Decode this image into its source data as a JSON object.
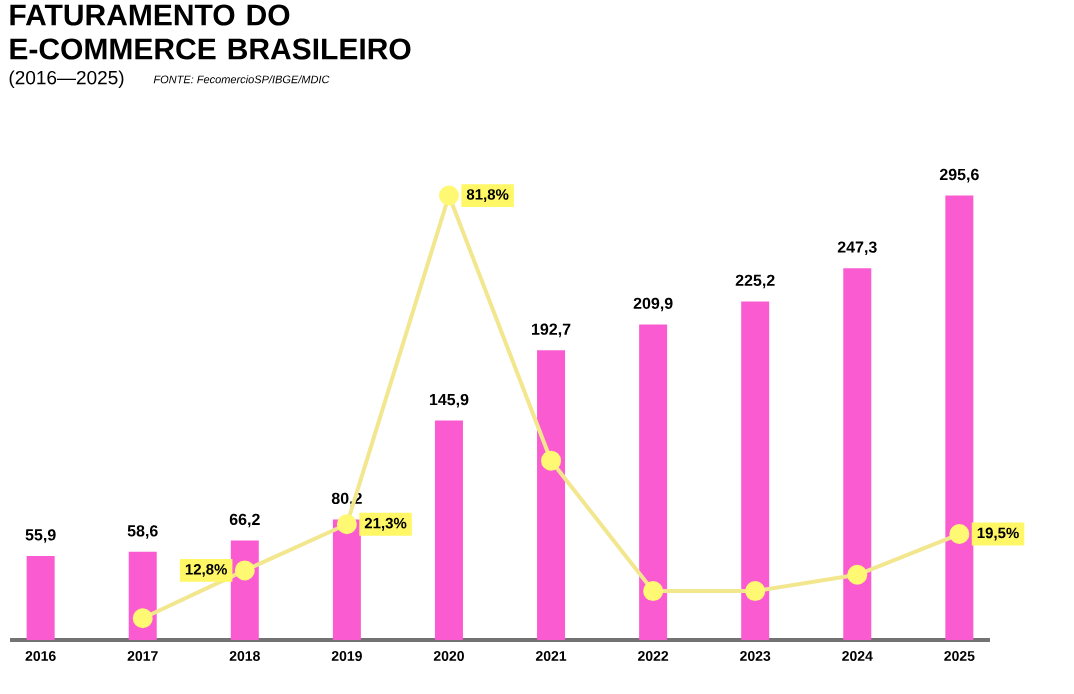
{
  "chart_data": {
    "type": "bar",
    "title": "FATURAMENTO DO E-COMMERCE BRASILEIRO",
    "subtitle": "(2016—2025)",
    "annotations": [
      "FONTE: FecomercioSP/IBGE/MDIC"
    ],
    "categories": [
      "2016",
      "2017",
      "2018",
      "2019",
      "2020",
      "2021",
      "2022",
      "2023",
      "2024",
      "2025"
    ],
    "series": [
      {
        "color": "#fa5bd0",
        "values": [
          55.9,
          58.6,
          66.2,
          80.2,
          145.9,
          192.7,
          209.9,
          225.2,
          247.3,
          295.6
        ],
        "value_labels": [
          "55,9",
          "58,6",
          "66,2",
          "80,2",
          "145,9",
          "192,7",
          "209,9",
          "225,2",
          "247,3",
          "295,6"
        ]
      },
      {
        "type": "line",
        "axis": "y2",
        "color": "#f2e78e",
        "values": [
          null,
          4,
          12.8,
          21.3,
          81.8,
          33,
          9,
          9,
          12,
          19.5
        ],
        "value_labels": [
          null,
          null,
          "12,8%",
          "21,3%",
          "81,8%",
          null,
          null,
          null,
          null,
          "19,5%"
        ]
      }
    ],
    "tick_labels": "x",
    "marker": "circle",
    "line_style": "solid"
  }
}
